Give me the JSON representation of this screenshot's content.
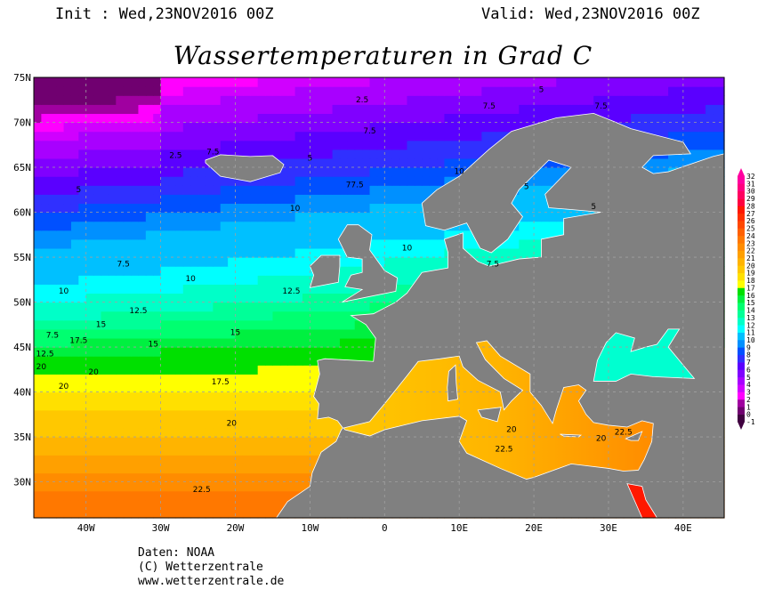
{
  "header": {
    "init": "Init : Wed,23NOV2016 00Z",
    "valid": "Valid: Wed,23NOV2016 00Z",
    "title": "Wassertemperaturen in Grad C"
  },
  "map": {
    "lon_range": [
      -47,
      45.5
    ],
    "lat_range": [
      26,
      75
    ],
    "land_color": "#808080",
    "lat_labels": [
      {
        "lat": 75,
        "label": "75N"
      },
      {
        "lat": 70,
        "label": "70N"
      },
      {
        "lat": 65,
        "label": "65N"
      },
      {
        "lat": 60,
        "label": "60N"
      },
      {
        "lat": 55,
        "label": "55N"
      },
      {
        "lat": 50,
        "label": "50N"
      },
      {
        "lat": 45,
        "label": "45N"
      },
      {
        "lat": 40,
        "label": "40N"
      },
      {
        "lat": 35,
        "label": "35N"
      },
      {
        "lat": 30,
        "label": "30N"
      }
    ],
    "lon_labels": [
      {
        "lon": -40,
        "label": "40W"
      },
      {
        "lon": -30,
        "label": "30W"
      },
      {
        "lon": -20,
        "label": "20W"
      },
      {
        "lon": -10,
        "label": "10W"
      },
      {
        "lon": 0,
        "label": "0"
      },
      {
        "lon": 10,
        "label": "10E"
      },
      {
        "lon": 20,
        "label": "20E"
      },
      {
        "lon": 30,
        "label": "30E"
      },
      {
        "lon": 40,
        "label": "40E"
      }
    ],
    "contour_labels": [
      {
        "lon": -3,
        "lat": 72.5,
        "label": "2.5"
      },
      {
        "lon": -28,
        "lat": 66.3,
        "label": "2.5"
      },
      {
        "lon": 21,
        "lat": 73.6,
        "label": "5"
      },
      {
        "lon": -41,
        "lat": 62.5,
        "label": "5"
      },
      {
        "lon": -10,
        "lat": 66,
        "label": "5"
      },
      {
        "lon": 19,
        "lat": 62.8,
        "label": "5"
      },
      {
        "lon": 28,
        "lat": 60.6,
        "label": "5"
      },
      {
        "lon": 14,
        "lat": 71.8,
        "label": "7.5"
      },
      {
        "lon": 29,
        "lat": 71.8,
        "label": "7.5"
      },
      {
        "lon": -2,
        "lat": 69,
        "label": "7.5"
      },
      {
        "lon": -23,
        "lat": 66.7,
        "label": "7.5"
      },
      {
        "lon": -35,
        "lat": 54.2,
        "label": "7.5"
      },
      {
        "lon": -44.5,
        "lat": 46.3,
        "label": "7.5"
      },
      {
        "lon": 14.5,
        "lat": 54.2,
        "label": "7.5"
      },
      {
        "lon": -4,
        "lat": 63,
        "label": "77.5"
      },
      {
        "lon": 10,
        "lat": 64.5,
        "label": "10"
      },
      {
        "lon": -12,
        "lat": 60.4,
        "label": "10"
      },
      {
        "lon": -26,
        "lat": 52.6,
        "label": "10"
      },
      {
        "lon": -43,
        "lat": 51.2,
        "label": "10"
      },
      {
        "lon": 3,
        "lat": 56,
        "label": "10"
      },
      {
        "lon": -12.5,
        "lat": 51.2,
        "label": "12.5"
      },
      {
        "lon": -33,
        "lat": 49,
        "label": "12.5"
      },
      {
        "lon": -45.5,
        "lat": 44.2,
        "label": "12.5"
      },
      {
        "lon": -38,
        "lat": 47.5,
        "label": "15"
      },
      {
        "lon": -31,
        "lat": 45.3,
        "label": "15"
      },
      {
        "lon": -20,
        "lat": 46.6,
        "label": "15"
      },
      {
        "lon": -41,
        "lat": 45.7,
        "label": "17.5"
      },
      {
        "lon": -22,
        "lat": 41.1,
        "label": "17.5"
      },
      {
        "lon": -46,
        "lat": 42.8,
        "label": "20"
      },
      {
        "lon": -43,
        "lat": 40.6,
        "label": "20"
      },
      {
        "lon": -39,
        "lat": 42.2,
        "label": "20"
      },
      {
        "lon": -20.5,
        "lat": 36.5,
        "label": "20"
      },
      {
        "lon": 17,
        "lat": 35.8,
        "label": "20"
      },
      {
        "lon": 29,
        "lat": 34.8,
        "label": "20"
      },
      {
        "lon": -24.5,
        "lat": 29.1,
        "label": "22.5"
      },
      {
        "lon": 16,
        "lat": 33.6,
        "label": "22.5"
      },
      {
        "lon": 32,
        "lat": 35.5,
        "label": "22.5"
      }
    ]
  },
  "colorbar": {
    "ticks": [
      "32",
      "31",
      "30",
      "29",
      "28",
      "27",
      "26",
      "25",
      "24",
      "23",
      "22",
      "21",
      "20",
      "19",
      "18",
      "17",
      "16",
      "15",
      "14",
      "13",
      "12",
      "11",
      "10",
      "9",
      "8",
      "7",
      "6",
      "5",
      "4",
      "3",
      "2",
      "1",
      "0",
      "-1"
    ],
    "colors": [
      "#400040",
      "#700070",
      "#a000a0",
      "#ff00ff",
      "#d000ff",
      "#a800ff",
      "#8000ff",
      "#5a00ff",
      "#3030ff",
      "#0050ff",
      "#0090ff",
      "#00c0ff",
      "#00ffff",
      "#00ffc8",
      "#00ff98",
      "#00ff70",
      "#00f040",
      "#00e000",
      "#ffff00",
      "#ffe000",
      "#ffc800",
      "#ffb400",
      "#ffa000",
      "#ff8c00",
      "#ff7800",
      "#ff6000",
      "#ff4800",
      "#ff3000",
      "#ff1800",
      "#ff0040",
      "#ff0060",
      "#ff0080",
      "#ff00a0"
    ]
  },
  "footer": {
    "line1": "Daten: NOAA",
    "line2": "(C) Wetterzentrale",
    "line3": "www.wetterzentrale.de"
  }
}
